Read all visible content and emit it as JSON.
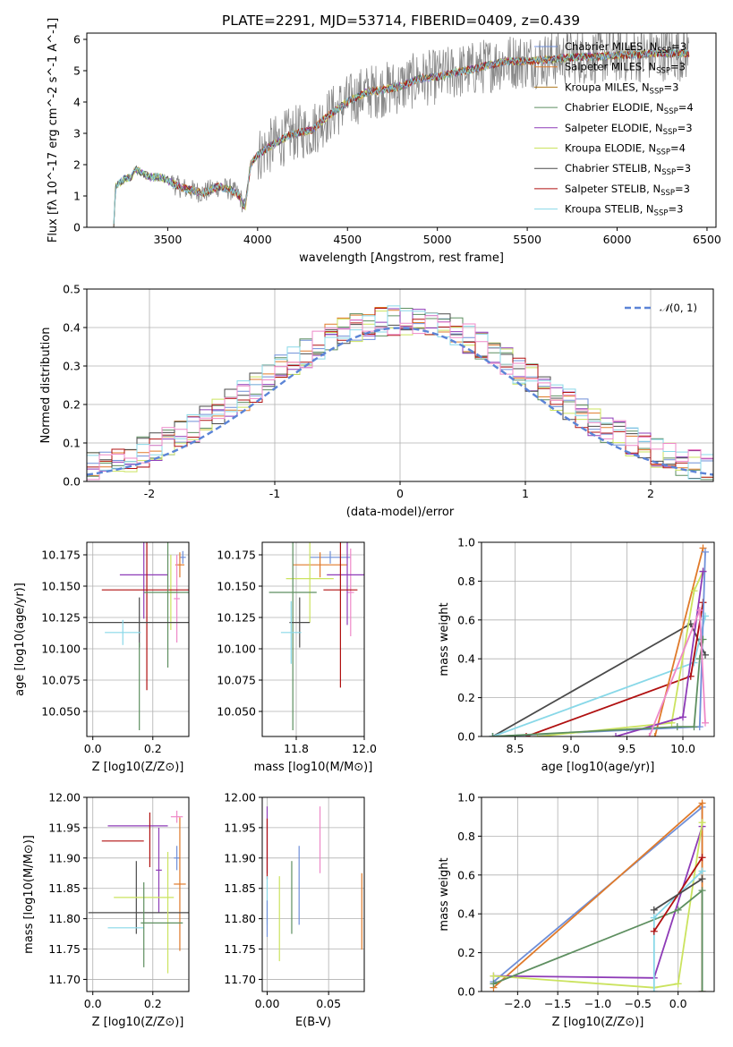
{
  "figure": {
    "colors": [
      "#6f8fd8",
      "#e07a2a",
      "#8a8a8a",
      "#5e8f60",
      "#8e3bb7",
      "#cbe35f",
      "#4a4a4a",
      "#b01010",
      "#88d8e8",
      "#ee88c8"
    ]
  },
  "chart_data": [
    {
      "id": "spectrum",
      "type": "line",
      "title": "PLATE=2291, MJD=53714, FIBERID=0409, z=0.439",
      "xlabel": "wavelength [Angstrom, rest frame]",
      "ylabel": "Flux [fλ 10^-17 erg cm^-2 s^-1 A^-1]",
      "xlim": [
        3050,
        6550
      ],
      "ylim": [
        0,
        6.2
      ],
      "xticks": [
        3500,
        4000,
        4500,
        5000,
        5500,
        6000,
        6500
      ],
      "yticks": [
        0,
        1,
        2,
        3,
        4,
        5,
        6
      ],
      "grid": false,
      "legend_position": "upper-right",
      "spectrum_knots": [
        [
          3200,
          0.0
        ],
        [
          3210,
          1.3
        ],
        [
          3260,
          1.55
        ],
        [
          3300,
          1.6
        ],
        [
          3320,
          1.85
        ],
        [
          3400,
          1.6
        ],
        [
          3460,
          1.6
        ],
        [
          3500,
          1.5
        ],
        [
          3560,
          1.3
        ],
        [
          3620,
          1.2
        ],
        [
          3700,
          1.1
        ],
        [
          3780,
          1.3
        ],
        [
          3850,
          1.2
        ],
        [
          3900,
          1.0
        ],
        [
          3930,
          0.6
        ],
        [
          3960,
          2.0
        ],
        [
          4000,
          2.3
        ],
        [
          4100,
          2.7
        ],
        [
          4200,
          3.0
        ],
        [
          4300,
          3.1
        ],
        [
          4400,
          3.6
        ],
        [
          4500,
          4.0
        ],
        [
          4600,
          4.3
        ],
        [
          4700,
          4.4
        ],
        [
          4800,
          4.5
        ],
        [
          4900,
          4.75
        ],
        [
          5000,
          4.8
        ],
        [
          5100,
          4.95
        ],
        [
          5200,
          5.05
        ],
        [
          5300,
          5.2
        ],
        [
          5400,
          5.3
        ],
        [
          5500,
          5.3
        ],
        [
          5600,
          5.35
        ],
        [
          5700,
          5.4
        ],
        [
          5800,
          5.45
        ],
        [
          5900,
          5.45
        ],
        [
          6000,
          5.5
        ],
        [
          6100,
          5.5
        ],
        [
          6200,
          5.55
        ],
        [
          6300,
          5.55
        ],
        [
          6400,
          5.55
        ]
      ],
      "series": [
        {
          "name": "Chabrier MILES, N_SSP=3",
          "color": "#6f8fd8"
        },
        {
          "name": "Salpeter MILES, N_SSP=3",
          "color": "#e07a2a"
        },
        {
          "name": "Kroupa MILES, N_SSP=3",
          "color": "#b07a20"
        },
        {
          "name": "Chabrier ELODIE, N_SSP=4",
          "color": "#5e8f60"
        },
        {
          "name": "Salpeter ELODIE, N_SSP=3",
          "color": "#8e3bb7"
        },
        {
          "name": "Kroupa ELODIE, N_SSP=4",
          "color": "#cbe35f"
        },
        {
          "name": "Chabrier STELIB, N_SSP=3",
          "color": "#4a4a4a"
        },
        {
          "name": "Salpeter STELIB, N_SSP=3",
          "color": "#b01010"
        },
        {
          "name": "Kroupa STELIB, N_SSP=3",
          "color": "#88d8e8"
        }
      ]
    },
    {
      "id": "residuals",
      "type": "histogram",
      "xlabel": "(data-model)/error",
      "ylabel": "Normed distribution",
      "xlim": [
        -2.5,
        2.5
      ],
      "ylim": [
        0,
        0.5
      ],
      "xticks": [
        -2,
        -1,
        0,
        1,
        2
      ],
      "yticks": [
        0.0,
        0.1,
        0.2,
        0.3,
        0.4,
        0.5
      ],
      "grid": true,
      "legend_position": "upper-right",
      "reference_curve": {
        "name": "𝒩(0,1)",
        "color": "#5b84d6",
        "style": "dashed"
      },
      "bin_width": 0.1
    },
    {
      "id": "age-vs-Z",
      "type": "scatter",
      "xlabel": "Z [log10(Z/Z⊙)]",
      "ylabel": "age  [log10(age/yr)]",
      "xlim": [
        -0.02,
        0.32
      ],
      "ylim": [
        10.03,
        10.185
      ],
      "xticks": [
        0.0,
        0.2
      ],
      "yticks": [
        10.05,
        10.075,
        10.1,
        10.125,
        10.15,
        10.175
      ],
      "grid": true,
      "points": [
        {
          "x": 0.3,
          "y": 10.173,
          "xerr": 0.01,
          "yerr": 0.005,
          "c": 0
        },
        {
          "x": 0.29,
          "y": 10.167,
          "xerr": 0.015,
          "yerr": 0.01,
          "c": 1
        },
        {
          "x": 0.28,
          "y": 10.14,
          "xerr": 0.01,
          "yerr": 0.035,
          "c": 9
        },
        {
          "x": 0.26,
          "y": 10.145,
          "xerr": 0.02,
          "yerr": 0.03,
          "c": 5
        },
        {
          "x": 0.17,
          "y": 10.159,
          "xerr": 0.08,
          "yerr": 0.035,
          "c": 4
        },
        {
          "x": 0.18,
          "y": 10.147,
          "xerr": 0.15,
          "yerr": 0.08,
          "c": 7
        },
        {
          "x": 0.25,
          "y": 10.145,
          "xerr": 0.08,
          "yerr": 0.06,
          "c": 3
        },
        {
          "x": 0.155,
          "y": 10.121,
          "xerr": 0.17,
          "yerr": 0.02,
          "c": 6
        },
        {
          "x": 0.1,
          "y": 10.113,
          "xerr": 0.06,
          "yerr": 0.01,
          "c": 8
        },
        {
          "x": 0.155,
          "y": 10.07,
          "xerr": 0.0,
          "yerr": 0.035,
          "c": 3
        }
      ]
    },
    {
      "id": "age-vs-mass",
      "type": "scatter",
      "xlabel": "mass [log10(M/M⊙)]",
      "ylabel": "",
      "xlim": [
        11.7,
        12.0
      ],
      "ylim": [
        10.03,
        10.185
      ],
      "xticks": [
        11.8,
        12.0
      ],
      "yticks": [
        10.05,
        10.075,
        10.1,
        10.125,
        10.15,
        10.175
      ],
      "grid": true,
      "points": [
        {
          "x": 11.9,
          "y": 10.173,
          "xerr": 0.06,
          "yerr": 0.005,
          "c": 0
        },
        {
          "x": 11.87,
          "y": 10.167,
          "xerr": 0.08,
          "yerr": 0.01,
          "c": 1
        },
        {
          "x": 11.96,
          "y": 10.145,
          "xerr": 0.01,
          "yerr": 0.035,
          "c": 9
        },
        {
          "x": 11.84,
          "y": 10.156,
          "xerr": 0.07,
          "yerr": 0.035,
          "c": 5
        },
        {
          "x": 11.95,
          "y": 10.159,
          "xerr": 0.06,
          "yerr": 0.04,
          "c": 4
        },
        {
          "x": 11.93,
          "y": 10.147,
          "xerr": 0.05,
          "yerr": 0.078,
          "c": 7
        },
        {
          "x": 11.79,
          "y": 10.145,
          "xerr": 0.07,
          "yerr": 0.11,
          "c": 3
        },
        {
          "x": 11.81,
          "y": 10.121,
          "xerr": 0.03,
          "yerr": 0.02,
          "c": 6
        },
        {
          "x": 11.785,
          "y": 10.113,
          "xerr": 0.03,
          "yerr": 0.025,
          "c": 8
        }
      ]
    },
    {
      "id": "massweight-vs-age",
      "type": "line",
      "xlabel": "age  [log10(age/yr)]",
      "ylabel": "mass weight",
      "xlim": [
        8.2,
        10.28
      ],
      "ylim": [
        0,
        1.0
      ],
      "xticks": [
        8.5,
        9.0,
        9.5,
        10.0
      ],
      "yticks": [
        0.0,
        0.2,
        0.4,
        0.6,
        0.8,
        1.0
      ],
      "grid": true,
      "series": [
        {
          "c": 6,
          "points": [
            [
              8.3,
              0.0
            ],
            [
              10.07,
              0.58
            ],
            [
              10.2,
              0.42
            ]
          ]
        },
        {
          "c": 8,
          "points": [
            [
              8.3,
              0.0
            ],
            [
              10.1,
              0.38
            ],
            [
              10.2,
              0.62
            ]
          ]
        },
        {
          "c": 7,
          "points": [
            [
              8.6,
              0.0
            ],
            [
              10.07,
              0.31
            ],
            [
              10.18,
              0.69
            ]
          ]
        },
        {
          "c": 1,
          "points": [
            [
              9.75,
              0.0
            ],
            [
              10.18,
              0.97
            ]
          ]
        },
        {
          "c": 0,
          "points": [
            [
              8.3,
              0.0
            ],
            [
              10.15,
              0.05
            ],
            [
              10.2,
              0.95
            ]
          ]
        },
        {
          "c": 5,
          "points": [
            [
              8.7,
              0.0
            ],
            [
              9.9,
              0.07
            ],
            [
              10.1,
              0.75
            ],
            [
              10.18,
              0.85
            ]
          ]
        },
        {
          "c": 4,
          "points": [
            [
              9.4,
              0.0
            ],
            [
              10.0,
              0.1
            ],
            [
              10.18,
              0.85
            ]
          ]
        },
        {
          "c": 3,
          "points": [
            [
              8.3,
              0.0
            ],
            [
              9.95,
              0.05
            ],
            [
              10.1,
              0.05
            ],
            [
              10.15,
              0.4
            ],
            [
              10.18,
              0.5
            ]
          ]
        },
        {
          "c": 9,
          "points": [
            [
              9.7,
              0.0
            ],
            [
              10.15,
              0.65
            ],
            [
              10.2,
              0.07
            ]
          ]
        }
      ]
    },
    {
      "id": "mass-vs-Z",
      "type": "scatter",
      "xlabel": "Z [log10(Z/Z⊙)]",
      "ylabel": "mass [log10(M/M⊙)]",
      "xlim": [
        -0.02,
        0.32
      ],
      "ylim": [
        11.68,
        12.0
      ],
      "xticks": [
        0.0,
        0.2
      ],
      "yticks": [
        11.7,
        11.75,
        11.8,
        11.85,
        11.9,
        11.95,
        12.0
      ],
      "grid": true,
      "points": [
        {
          "x": 0.28,
          "y": 11.9,
          "xerr": 0.01,
          "yerr": 0.02,
          "c": 0
        },
        {
          "x": 0.29,
          "y": 11.857,
          "xerr": 0.02,
          "yerr": 0.11,
          "c": 1
        },
        {
          "x": 0.28,
          "y": 11.968,
          "xerr": 0.02,
          "yerr": 0.01,
          "c": 9
        },
        {
          "x": 0.22,
          "y": 11.88,
          "xerr": 0.01,
          "yerr": 0.07,
          "c": 4
        },
        {
          "x": 0.15,
          "y": 11.953,
          "xerr": 0.1,
          "yerr": 0.0,
          "c": 4
        },
        {
          "x": 0.1,
          "y": 11.928,
          "xerr": 0.07,
          "yerr": 0.0,
          "c": 7
        },
        {
          "x": 0.19,
          "y": 11.93,
          "xerr": 0.0,
          "yerr": 0.045,
          "c": 7
        },
        {
          "x": 0.155,
          "y": 11.81,
          "xerr": 0.17,
          "yerr": 0.0,
          "c": 6
        },
        {
          "x": 0.145,
          "y": 11.835,
          "xerr": 0.0,
          "yerr": 0.06,
          "c": 6
        },
        {
          "x": 0.17,
          "y": 11.835,
          "xerr": 0.1,
          "yerr": 0.0,
          "c": 5
        },
        {
          "x": 0.25,
          "y": 11.81,
          "xerr": 0.0,
          "yerr": 0.1,
          "c": 5
        },
        {
          "x": 0.11,
          "y": 11.785,
          "xerr": 0.06,
          "yerr": 0.0,
          "c": 8
        },
        {
          "x": 0.17,
          "y": 11.79,
          "xerr": 0.0,
          "yerr": 0.07,
          "c": 3
        },
        {
          "x": 0.23,
          "y": 11.793,
          "xerr": 0.07,
          "yerr": 0.0,
          "c": 3
        }
      ]
    },
    {
      "id": "mass-vs-EBV",
      "type": "scatter",
      "xlabel": "E(B-V)",
      "ylabel": "",
      "xlim": [
        -0.004,
        0.079
      ],
      "ylim": [
        11.68,
        12.0
      ],
      "xticks": [
        0.0,
        0.05
      ],
      "yticks": [
        11.7,
        11.75,
        11.8,
        11.85,
        11.9,
        11.95,
        12.0
      ],
      "grid": true,
      "points": [
        {
          "x": 0.0,
          "y": 11.93,
          "xerr": 0.0,
          "yerr": 0.055,
          "c": 4
        },
        {
          "x": 0.0,
          "y": 11.915,
          "xerr": 0.0,
          "yerr": 0.05,
          "c": 7
        },
        {
          "x": 0.0,
          "y": 11.83,
          "xerr": 0.0,
          "yerr": 0.04,
          "c": 8
        },
        {
          "x": 0.0,
          "y": 11.8,
          "xerr": 0.0,
          "yerr": 0.03,
          "c": 0
        },
        {
          "x": 0.01,
          "y": 11.8,
          "xerr": 0.0,
          "yerr": 0.07,
          "c": 5
        },
        {
          "x": 0.02,
          "y": 11.835,
          "xerr": 0.0,
          "yerr": 0.06,
          "c": 3
        },
        {
          "x": 0.026,
          "y": 11.855,
          "xerr": 0.0,
          "yerr": 0.065,
          "c": 0
        },
        {
          "x": 0.043,
          "y": 11.93,
          "xerr": 0.0,
          "yerr": 0.055,
          "c": 9
        },
        {
          "x": 0.077,
          "y": 11.812,
          "xerr": 0.0,
          "yerr": 0.063,
          "c": 1
        }
      ]
    },
    {
      "id": "massweight-vs-Z",
      "type": "line",
      "xlabel": "Z [log10(Z/Z⊙)]",
      "ylabel": "mass weight",
      "xlim": [
        -2.45,
        0.45
      ],
      "ylim": [
        0,
        1.0
      ],
      "xticks": [
        -2.0,
        -1.5,
        -1.0,
        -0.5,
        0.0
      ],
      "yticks": [
        0.0,
        0.2,
        0.4,
        0.6,
        0.8,
        1.0
      ],
      "grid": true,
      "series": [
        {
          "c": 0,
          "points": [
            [
              -2.3,
              0.05
            ],
            [
              0.3,
              0.95
            ],
            [
              0.3,
              0.0
            ]
          ]
        },
        {
          "c": 1,
          "points": [
            [
              -2.3,
              0.02
            ],
            [
              0.3,
              0.97
            ],
            [
              0.3,
              0.0
            ]
          ]
        },
        {
          "c": 4,
          "points": [
            [
              -2.3,
              0.08
            ],
            [
              -0.3,
              0.07
            ],
            [
              0.3,
              0.85
            ]
          ]
        },
        {
          "c": 5,
          "points": [
            [
              -2.3,
              0.08
            ],
            [
              -0.3,
              0.02
            ],
            [
              0.0,
              0.04
            ],
            [
              0.3,
              0.87
            ]
          ]
        },
        {
          "c": 3,
          "points": [
            [
              -2.3,
              0.04
            ],
            [
              0.0,
              0.42
            ],
            [
              0.3,
              0.52
            ],
            [
              0.3,
              0.0
            ]
          ]
        },
        {
          "c": 8,
          "points": [
            [
              -0.3,
              0.0
            ],
            [
              -0.3,
              0.38
            ],
            [
              0.3,
              0.62
            ]
          ]
        },
        {
          "c": 7,
          "points": [
            [
              -0.3,
              0.31
            ],
            [
              0.3,
              0.69
            ]
          ]
        },
        {
          "c": 6,
          "points": [
            [
              -0.3,
              0.42
            ],
            [
              0.3,
              0.58
            ]
          ]
        }
      ]
    }
  ]
}
